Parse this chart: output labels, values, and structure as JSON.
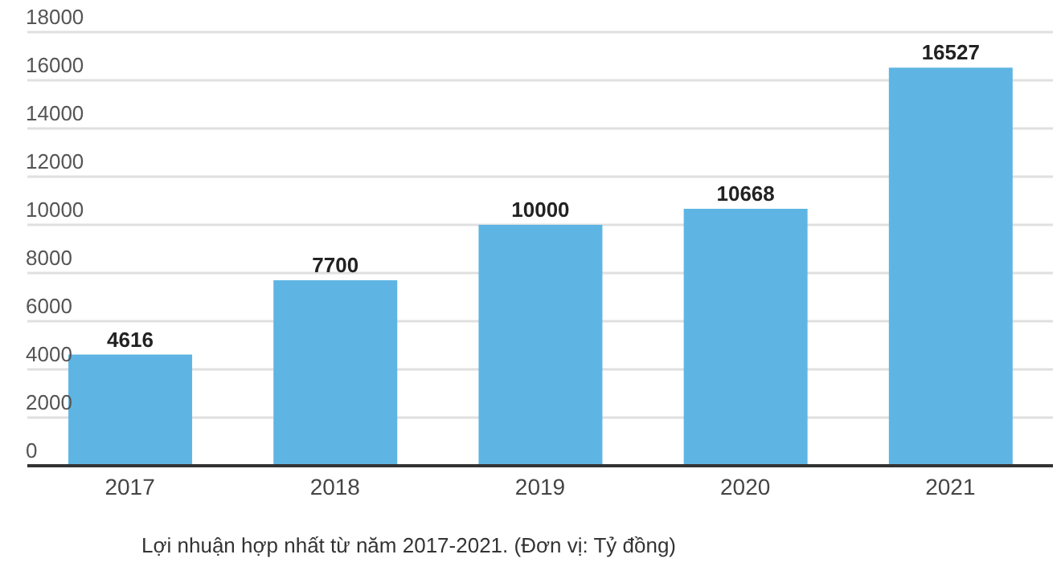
{
  "chart_data": {
    "type": "bar",
    "categories": [
      "2017",
      "2018",
      "2019",
      "2020",
      "2021"
    ],
    "values": [
      4616,
      7700,
      10000,
      10668,
      16527
    ],
    "color": "#5eb5e3",
    "ylim": [
      0,
      18000
    ],
    "yticks": [
      0,
      2000,
      4000,
      6000,
      8000,
      10000,
      12000,
      14000,
      16000,
      18000
    ],
    "grid": "y",
    "data_labels": true,
    "legend": false,
    "annotations": [
      "Lợi nhuận hợp nhất từ năm 2017-2021. (Đơn vị: Tỷ đồng)"
    ]
  }
}
